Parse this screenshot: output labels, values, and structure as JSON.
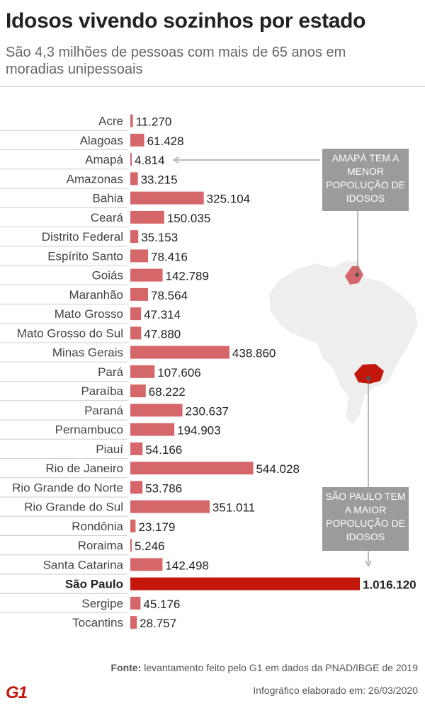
{
  "header": {
    "title": "Idosos vivendo sozinhos por estado",
    "subtitle": "São 4,3 milhões de pessoas com mais de 65 anos em moradias unipessoais"
  },
  "colors": {
    "bar": "#d5676a",
    "highlight": "#c4170c",
    "callout": "#9b9b9b",
    "map": "#eeeeee"
  },
  "chart_data": {
    "type": "bar",
    "orientation": "horizontal",
    "categories": [
      "Acre",
      "Alagoas",
      "Amapá",
      "Amazonas",
      "Bahia",
      "Ceará",
      "Distrito Federal",
      "Espírito Santo",
      "Goiás",
      "Maranhão",
      "Mato Grosso",
      "Mato Grosso do Sul",
      "Minas Gerais",
      "Pará",
      "Paraíba",
      "Paraná",
      "Pernambuco",
      "Piauí",
      "Rio de Janeiro",
      "Rio Grande do Norte",
      "Rio Grande do Sul",
      "Rondônia",
      "Roraima",
      "Santa Catarina",
      "São Paulo",
      "Sergipe",
      "Tocantins"
    ],
    "values": [
      11270,
      61428,
      4814,
      33215,
      325104,
      150035,
      35153,
      78416,
      142789,
      78564,
      47314,
      47880,
      438860,
      107606,
      68222,
      230637,
      194903,
      54166,
      544028,
      53786,
      351011,
      23179,
      5246,
      142498,
      1016120,
      45176,
      28757
    ],
    "value_labels": [
      "11.270",
      "61.428",
      "4.814",
      "33.215",
      "325.104",
      "150.035",
      "35.153",
      "78.416",
      "142.789",
      "78.564",
      "47.314",
      "47.880",
      "438.860",
      "107.606",
      "68.222",
      "230.637",
      "194.903",
      "54.166",
      "544.028",
      "53.786",
      "351.011",
      "23.179",
      "5.246",
      "142.498",
      "1.016.120",
      "45.176",
      "28.757"
    ],
    "highlight": "São Paulo",
    "grid": false,
    "legend": "none"
  },
  "annotations": {
    "min": "AMAPÁ TEM A MENOR POPOLUÇÃO DE IDOSOS",
    "max": "SÃO PAULO TEM A MAIOR POPOLUÇÃO DE IDOSOS"
  },
  "footer": {
    "source_label": "Fonte:",
    "source_text": " levantamento feito pelo G1 em dados da PNAD/IBGE de 2019",
    "credit": "Infográfico elaborado em: 26/03/2020",
    "logo": "G1"
  }
}
